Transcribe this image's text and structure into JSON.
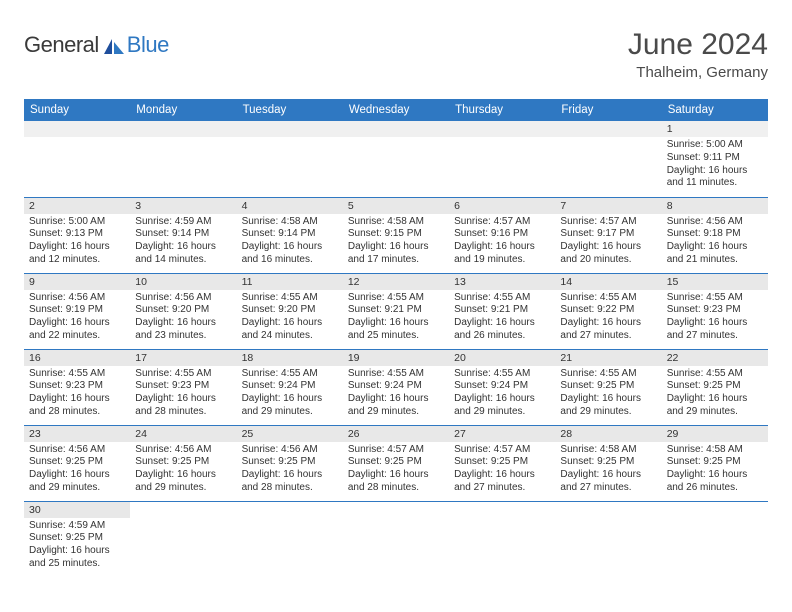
{
  "brand": {
    "text1": "General",
    "text2": "Blue"
  },
  "title": "June 2024",
  "location": "Thalheim, Germany",
  "colors": {
    "accent": "#2f78c2",
    "header_bg": "#2f78c2",
    "header_fg": "#ffffff",
    "daynum_bg": "#e8e8e8",
    "text": "#333333",
    "background": "#ffffff"
  },
  "day_headers": [
    "Sunday",
    "Monday",
    "Tuesday",
    "Wednesday",
    "Thursday",
    "Friday",
    "Saturday"
  ],
  "weeks": [
    [
      null,
      null,
      null,
      null,
      null,
      null,
      {
        "n": "1",
        "sr": "5:00 AM",
        "ss": "9:11 PM",
        "dl": "16 hours and 11 minutes."
      }
    ],
    [
      {
        "n": "2",
        "sr": "5:00 AM",
        "ss": "9:13 PM",
        "dl": "16 hours and 12 minutes."
      },
      {
        "n": "3",
        "sr": "4:59 AM",
        "ss": "9:14 PM",
        "dl": "16 hours and 14 minutes."
      },
      {
        "n": "4",
        "sr": "4:58 AM",
        "ss": "9:14 PM",
        "dl": "16 hours and 16 minutes."
      },
      {
        "n": "5",
        "sr": "4:58 AM",
        "ss": "9:15 PM",
        "dl": "16 hours and 17 minutes."
      },
      {
        "n": "6",
        "sr": "4:57 AM",
        "ss": "9:16 PM",
        "dl": "16 hours and 19 minutes."
      },
      {
        "n": "7",
        "sr": "4:57 AM",
        "ss": "9:17 PM",
        "dl": "16 hours and 20 minutes."
      },
      {
        "n": "8",
        "sr": "4:56 AM",
        "ss": "9:18 PM",
        "dl": "16 hours and 21 minutes."
      }
    ],
    [
      {
        "n": "9",
        "sr": "4:56 AM",
        "ss": "9:19 PM",
        "dl": "16 hours and 22 minutes."
      },
      {
        "n": "10",
        "sr": "4:56 AM",
        "ss": "9:20 PM",
        "dl": "16 hours and 23 minutes."
      },
      {
        "n": "11",
        "sr": "4:55 AM",
        "ss": "9:20 PM",
        "dl": "16 hours and 24 minutes."
      },
      {
        "n": "12",
        "sr": "4:55 AM",
        "ss": "9:21 PM",
        "dl": "16 hours and 25 minutes."
      },
      {
        "n": "13",
        "sr": "4:55 AM",
        "ss": "9:21 PM",
        "dl": "16 hours and 26 minutes."
      },
      {
        "n": "14",
        "sr": "4:55 AM",
        "ss": "9:22 PM",
        "dl": "16 hours and 27 minutes."
      },
      {
        "n": "15",
        "sr": "4:55 AM",
        "ss": "9:23 PM",
        "dl": "16 hours and 27 minutes."
      }
    ],
    [
      {
        "n": "16",
        "sr": "4:55 AM",
        "ss": "9:23 PM",
        "dl": "16 hours and 28 minutes."
      },
      {
        "n": "17",
        "sr": "4:55 AM",
        "ss": "9:23 PM",
        "dl": "16 hours and 28 minutes."
      },
      {
        "n": "18",
        "sr": "4:55 AM",
        "ss": "9:24 PM",
        "dl": "16 hours and 29 minutes."
      },
      {
        "n": "19",
        "sr": "4:55 AM",
        "ss": "9:24 PM",
        "dl": "16 hours and 29 minutes."
      },
      {
        "n": "20",
        "sr": "4:55 AM",
        "ss": "9:24 PM",
        "dl": "16 hours and 29 minutes."
      },
      {
        "n": "21",
        "sr": "4:55 AM",
        "ss": "9:25 PM",
        "dl": "16 hours and 29 minutes."
      },
      {
        "n": "22",
        "sr": "4:55 AM",
        "ss": "9:25 PM",
        "dl": "16 hours and 29 minutes."
      }
    ],
    [
      {
        "n": "23",
        "sr": "4:56 AM",
        "ss": "9:25 PM",
        "dl": "16 hours and 29 minutes."
      },
      {
        "n": "24",
        "sr": "4:56 AM",
        "ss": "9:25 PM",
        "dl": "16 hours and 29 minutes."
      },
      {
        "n": "25",
        "sr": "4:56 AM",
        "ss": "9:25 PM",
        "dl": "16 hours and 28 minutes."
      },
      {
        "n": "26",
        "sr": "4:57 AM",
        "ss": "9:25 PM",
        "dl": "16 hours and 28 minutes."
      },
      {
        "n": "27",
        "sr": "4:57 AM",
        "ss": "9:25 PM",
        "dl": "16 hours and 27 minutes."
      },
      {
        "n": "28",
        "sr": "4:58 AM",
        "ss": "9:25 PM",
        "dl": "16 hours and 27 minutes."
      },
      {
        "n": "29",
        "sr": "4:58 AM",
        "ss": "9:25 PM",
        "dl": "16 hours and 26 minutes."
      }
    ],
    [
      {
        "n": "30",
        "sr": "4:59 AM",
        "ss": "9:25 PM",
        "dl": "16 hours and 25 minutes."
      },
      null,
      null,
      null,
      null,
      null,
      null
    ]
  ],
  "labels": {
    "sunrise": "Sunrise:",
    "sunset": "Sunset:",
    "daylight": "Daylight:"
  }
}
